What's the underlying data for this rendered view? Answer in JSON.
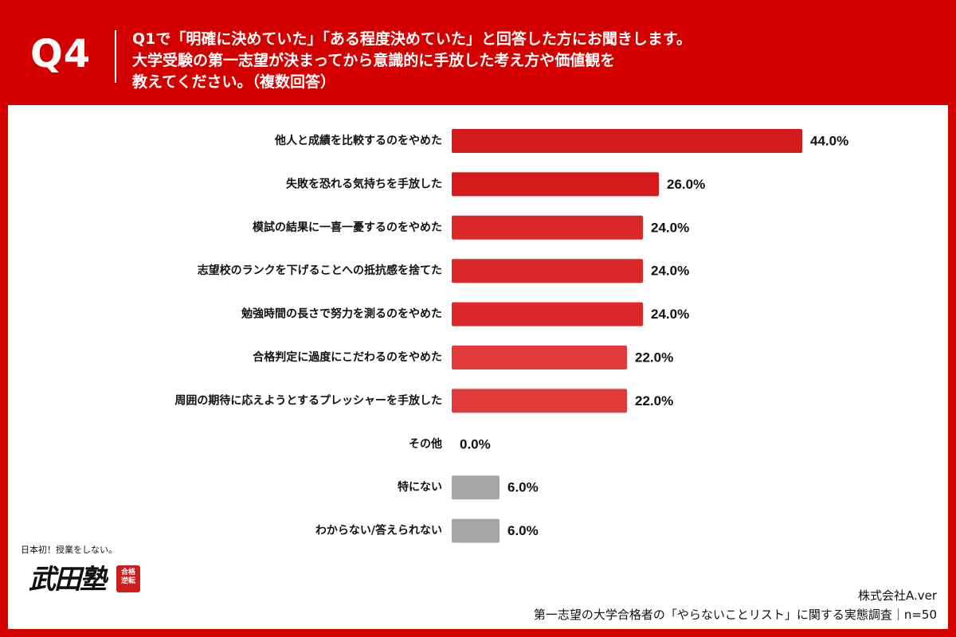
{
  "header": {
    "q_label": "Q4",
    "question_lines": [
      "Q1で「明確に決めていた」「ある程度決めていた」と回答した方にお聞きします。",
      "大学受験の第一志望が決まってから意識的に手放した考え方や価値観を",
      "教えてください。（複数回答）"
    ]
  },
  "colors": {
    "frame": "#d40000",
    "bar_shades": [
      "#d41a1a",
      "#dc2828",
      "#e03a3a",
      "#e55050"
    ],
    "bar_other": "#a6a6a6"
  },
  "chart_data": {
    "type": "bar",
    "orientation": "horizontal",
    "categories": [
      "他人と成績を比較するのをやめた",
      "失敗を恐れる気持ちを手放した",
      "模試の結果に一喜一憂するのをやめた",
      "志望校のランクを下げることへの抵抗感を捨てた",
      "勉強時間の長さで努力を測るのをやめた",
      "合格判定に過度にこだわるのをやめた",
      "周囲の期待に応えようとするプレッシャーを手放した",
      "その他",
      "特にない",
      "わからない/答えられない"
    ],
    "values": [
      44.0,
      26.0,
      24.0,
      24.0,
      24.0,
      22.0,
      22.0,
      0.0,
      6.0,
      6.0
    ],
    "value_labels": [
      "44.0%",
      "26.0%",
      "24.0%",
      "24.0%",
      "24.0%",
      "22.0%",
      "22.0%",
      "0.0%",
      "6.0%",
      "6.0%"
    ],
    "bar_color_index": [
      0,
      0,
      1,
      1,
      1,
      2,
      2,
      3,
      3,
      3
    ],
    "xlim": [
      0,
      44
    ],
    "grid": false,
    "legend": "none"
  },
  "logo": {
    "tagline": "日本初！授業をしない。",
    "mark": "武田塾",
    "stamp": "合格\n逆転"
  },
  "footer": {
    "company": "株式会社A.ver",
    "survey": "第一志望の大学合格者の「やらないことリスト」に関する実態調査｜n=50"
  }
}
